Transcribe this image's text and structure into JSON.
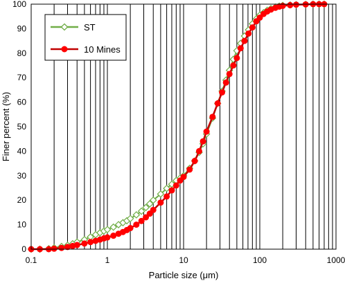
{
  "chart_data": {
    "type": "line",
    "title": "",
    "xlabel": "Particle size (μm)",
    "ylabel": "Finer percent (%)",
    "x_scale": "log",
    "xlim": [
      0.1,
      1000
    ],
    "ylim": [
      0,
      100
    ],
    "x_ticks": [
      "0.1",
      "1",
      "10",
      "100",
      "1000"
    ],
    "y_ticks": [
      "0",
      "10",
      "20",
      "30",
      "40",
      "50",
      "60",
      "70",
      "80",
      "90",
      "100"
    ],
    "grid": "vertical",
    "legend_position": "top-left",
    "series": [
      {
        "name": "ST",
        "color": "#70ad47",
        "marker": "open-diamond",
        "x": [
          0.1,
          0.13,
          0.17,
          0.2,
          0.25,
          0.3,
          0.35,
          0.4,
          0.5,
          0.6,
          0.7,
          0.8,
          0.9,
          1,
          1.2,
          1.4,
          1.6,
          1.8,
          2,
          2.4,
          2.8,
          3.2,
          3.6,
          4,
          5,
          6,
          7,
          8,
          9,
          10,
          12,
          14,
          16,
          18,
          20,
          24,
          28,
          32,
          36,
          40,
          45,
          50,
          56,
          63,
          71,
          80,
          90,
          100,
          112,
          125,
          140,
          160,
          180,
          200,
          250,
          300,
          400,
          500,
          600,
          700
        ],
        "values": [
          0,
          0,
          0.2,
          0.6,
          1.1,
          1.6,
          2.2,
          2.9,
          3.9,
          5.0,
          5.9,
          6.7,
          7.4,
          8.0,
          9.0,
          10.0,
          10.8,
          11.6,
          12.5,
          14.0,
          15.5,
          17.0,
          18.5,
          20.0,
          22.5,
          24.8,
          26.5,
          28.0,
          29.0,
          30.0,
          33.0,
          36.0,
          39.5,
          43.0,
          47.0,
          53.5,
          59.5,
          64.5,
          69.0,
          73.0,
          77.5,
          81.0,
          84.0,
          87.0,
          89.5,
          92.0,
          94.0,
          95.5,
          96.5,
          97.5,
          98.2,
          98.8,
          99.2,
          99.5,
          99.7,
          99.8,
          99.9,
          100,
          100,
          100
        ]
      },
      {
        "name": "10 Mines",
        "color": "#ff0000",
        "line_color": "#c00000",
        "marker": "filled-circle",
        "x": [
          0.1,
          0.13,
          0.17,
          0.2,
          0.25,
          0.3,
          0.35,
          0.4,
          0.5,
          0.6,
          0.7,
          0.8,
          0.9,
          1,
          1.2,
          1.4,
          1.6,
          1.8,
          2,
          2.4,
          2.8,
          3.2,
          3.6,
          4,
          5,
          6,
          7,
          8,
          9,
          10,
          12,
          14,
          16,
          18,
          20,
          24,
          28,
          32,
          36,
          40,
          45,
          50,
          56,
          63,
          71,
          80,
          90,
          100,
          112,
          125,
          140,
          160,
          180,
          200,
          250,
          300,
          400,
          500,
          600,
          700
        ],
        "values": [
          0,
          0,
          0,
          0.2,
          0.5,
          0.9,
          1.3,
          1.7,
          2.3,
          2.9,
          3.4,
          3.9,
          4.4,
          4.8,
          5.5,
          6.3,
          7.0,
          7.8,
          8.6,
          10.0,
          11.5,
          13.0,
          14.5,
          16.0,
          19.0,
          21.5,
          24.0,
          26.0,
          28.0,
          29.5,
          32.5,
          36.0,
          40.0,
          44.0,
          48.0,
          54.0,
          59.5,
          64.0,
          68.0,
          71.5,
          75.0,
          78.0,
          82.0,
          85.0,
          88.0,
          90.5,
          93.0,
          94.5,
          96.0,
          97.0,
          97.8,
          98.5,
          99.0,
          99.3,
          99.6,
          99.8,
          99.9,
          100,
          100,
          100
        ]
      }
    ]
  }
}
